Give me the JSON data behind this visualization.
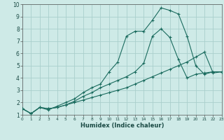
{
  "xlabel": "Humidex (Indice chaleur)",
  "xlim": [
    0,
    23
  ],
  "ylim": [
    1,
    10
  ],
  "xticks": [
    0,
    1,
    2,
    3,
    4,
    5,
    6,
    7,
    8,
    9,
    10,
    11,
    12,
    13,
    14,
    15,
    16,
    17,
    18,
    19,
    20,
    21,
    22,
    23
  ],
  "yticks": [
    1,
    2,
    3,
    4,
    5,
    6,
    7,
    8,
    9,
    10
  ],
  "bg_color": "#ceeae7",
  "grid_color": "#aacfcc",
  "line_color": "#1a6b5e",
  "line1_x": [
    0,
    1,
    2,
    3,
    4,
    5,
    6,
    7,
    8,
    9,
    10,
    11,
    12,
    13,
    14,
    15,
    16,
    17,
    18,
    19,
    20,
    21,
    22,
    23
  ],
  "line1_y": [
    1.5,
    1.1,
    1.6,
    1.5,
    1.6,
    1.8,
    2.1,
    2.5,
    2.8,
    3.2,
    3.5,
    3.8,
    4.1,
    4.5,
    5.2,
    7.4,
    8.0,
    7.3,
    5.5,
    4.0,
    4.3,
    4.4,
    4.5,
    4.5
  ],
  "line2_x": [
    0,
    1,
    2,
    3,
    4,
    5,
    6,
    7,
    8,
    9,
    10,
    11,
    12,
    13,
    14,
    15,
    16,
    17,
    18,
    19,
    20,
    21,
    22,
    23
  ],
  "line2_y": [
    1.5,
    1.1,
    1.6,
    1.4,
    1.7,
    2.0,
    2.3,
    2.8,
    3.2,
    3.5,
    4.5,
    5.3,
    7.4,
    7.8,
    7.8,
    8.7,
    9.7,
    9.5,
    9.2,
    7.4,
    5.0,
    4.3,
    4.5,
    4.5
  ],
  "line3_x": [
    0,
    1,
    2,
    3,
    4,
    5,
    6,
    7,
    8,
    9,
    10,
    11,
    12,
    13,
    14,
    15,
    16,
    17,
    18,
    19,
    20,
    21,
    22,
    23
  ],
  "line3_y": [
    1.5,
    1.1,
    1.6,
    1.5,
    1.6,
    1.8,
    2.0,
    2.2,
    2.4,
    2.6,
    2.8,
    3.0,
    3.2,
    3.5,
    3.8,
    4.1,
    4.4,
    4.7,
    5.0,
    5.3,
    5.7,
    6.1,
    4.4,
    4.5
  ]
}
